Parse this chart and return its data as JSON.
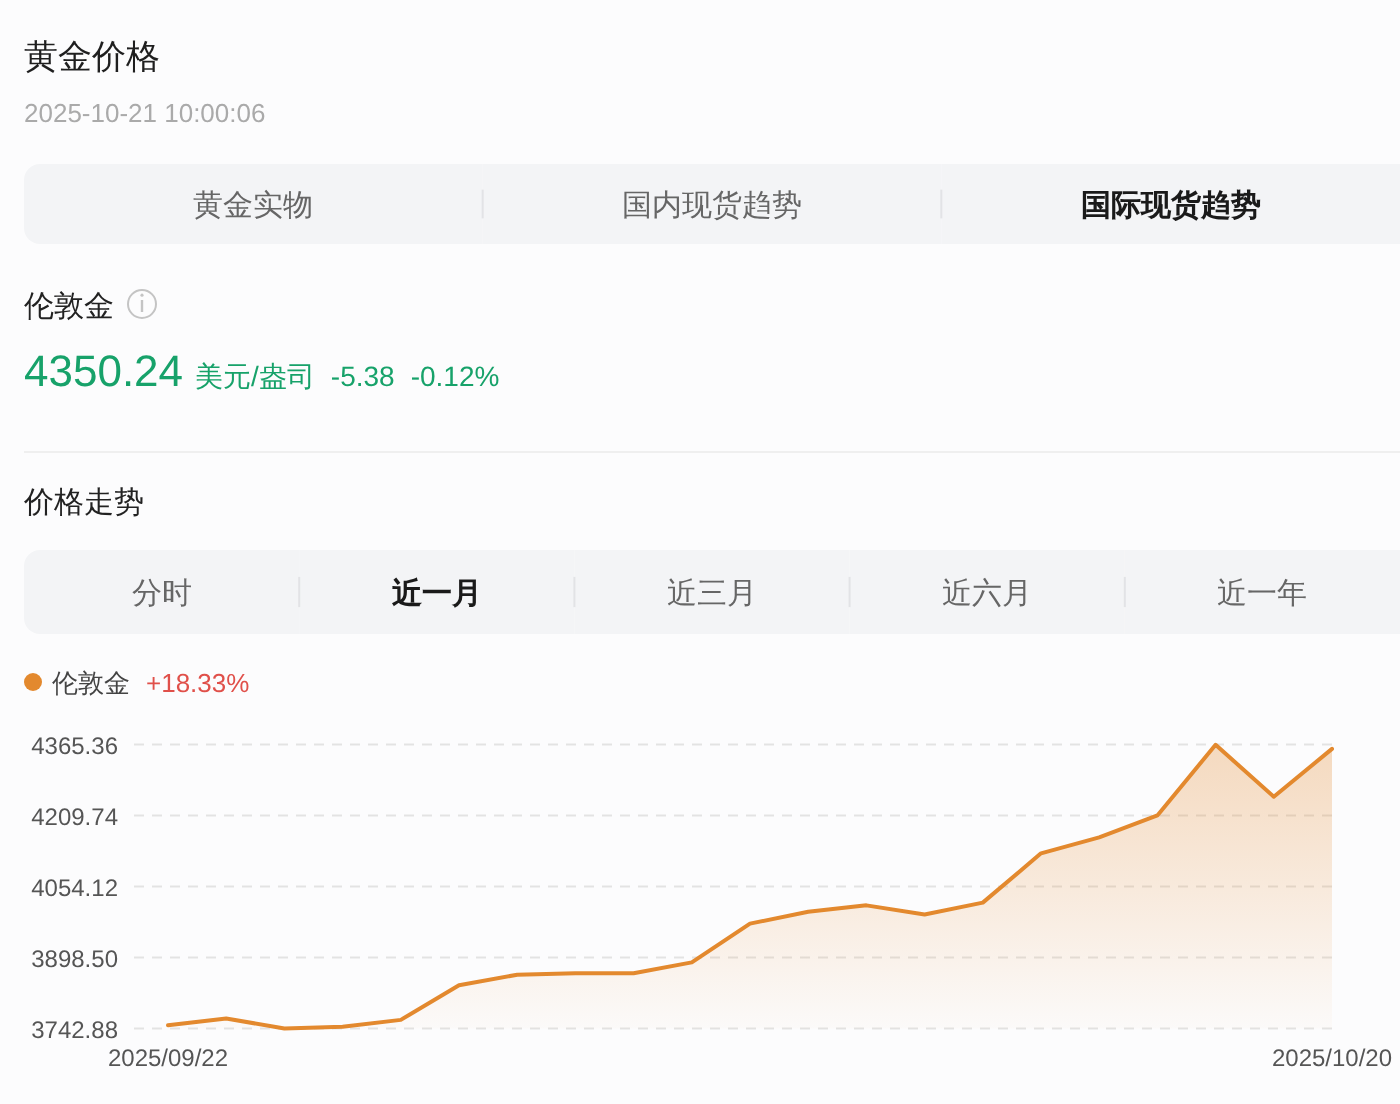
{
  "chart_data": [
    {
      "type": "other",
      "title": "黄金价格",
      "subtitle": "2025-10-21 10:00:06",
      "annotations": [
        "黄金实物",
        "国内现货趋势",
        "国际现货趋势",
        "伦敦金",
        "4350.24",
        "美元/盎司",
        "-5.38",
        "-0.12%"
      ]
    },
    {
      "type": "area",
      "title": "价格走势",
      "annotations": [
        "分时",
        "近一月",
        "近三月",
        "近六月",
        "近一年",
        "+18.33%"
      ],
      "categories": [
        "2025/09/22",
        null,
        null,
        null,
        null,
        null,
        null,
        null,
        null,
        null,
        null,
        null,
        null,
        null,
        null,
        null,
        null,
        null,
        null,
        null,
        "2025/10/20"
      ],
      "series": [
        {
          "name": "伦敦金",
          "color": "#e3892e",
          "values": [
            3750,
            3765,
            3743,
            3747,
            3762,
            3838,
            3861,
            3864,
            3864,
            3888,
            3973,
            3999,
            4013,
            3993,
            4019,
            4127,
            4162,
            4210,
            4365,
            4251,
            4356
          ]
        }
      ],
      "ylim": [
        3742.88,
        4365.36
      ],
      "yticks": [
        3742.88,
        {
          "value": 3898.5,
          "label": "3898.50"
        },
        4054.12,
        4209.74,
        4365.36
      ],
      "grid": "y",
      "legend": "top left"
    }
  ]
}
